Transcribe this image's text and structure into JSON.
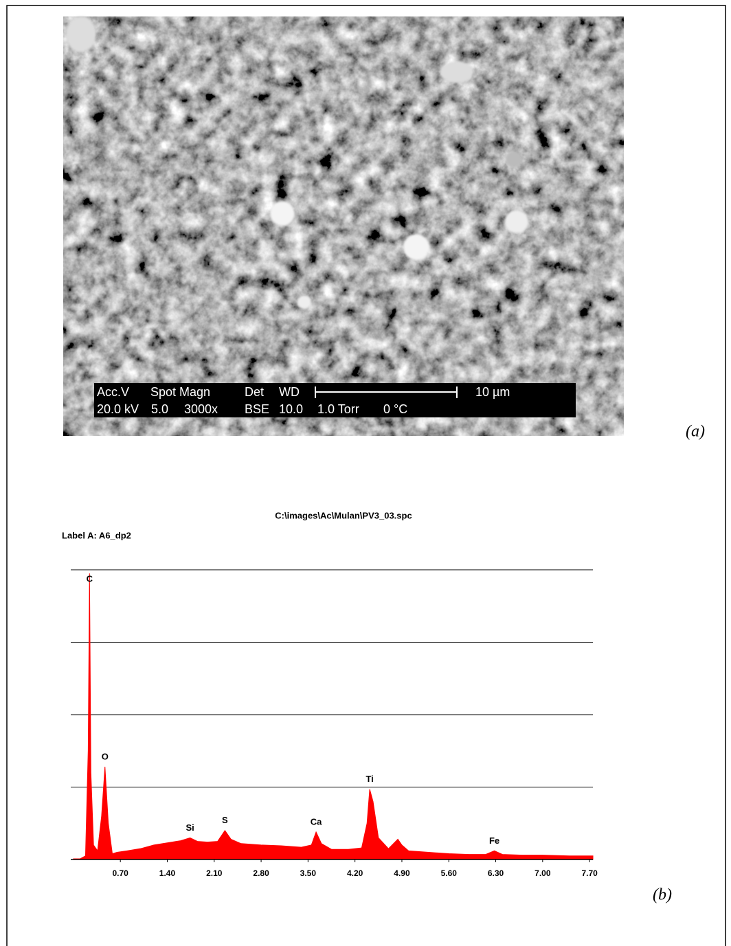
{
  "sem": {
    "row1": [
      "Acc.V",
      "Spot Magn",
      "Det",
      "WD",
      "10 µm"
    ],
    "row2": [
      "20.0 kV",
      "5.0",
      "3000x",
      "BSE",
      "10.0",
      "1.0 Torr",
      "0 °C"
    ]
  },
  "panel_labels": [
    "(a)",
    "(b)"
  ],
  "chart_data": {
    "type": "spectrum",
    "title": "C:\\images\\Ac\\Mulan\\PV3_03.spc",
    "subtitle": "Label A: A6_dp2",
    "x": [
      0.0,
      0.1,
      0.18,
      0.22,
      0.24,
      0.26,
      0.3,
      0.36,
      0.42,
      0.47,
      0.52,
      0.58,
      0.65,
      0.8,
      1.0,
      1.2,
      1.4,
      1.6,
      1.74,
      1.85,
      2.0,
      2.15,
      2.26,
      2.35,
      2.5,
      2.8,
      3.1,
      3.4,
      3.55,
      3.62,
      3.7,
      3.85,
      4.1,
      4.3,
      4.38,
      4.42,
      4.47,
      4.55,
      4.7,
      4.84,
      4.9,
      5.0,
      5.3,
      5.6,
      5.9,
      6.15,
      6.28,
      6.4,
      6.7,
      7.0,
      7.4,
      7.75
    ],
    "values": [
      0.01,
      0.01,
      0.05,
      1.5,
      3.95,
      1.2,
      0.2,
      0.12,
      0.6,
      1.28,
      0.5,
      0.08,
      0.1,
      0.12,
      0.15,
      0.2,
      0.23,
      0.26,
      0.3,
      0.25,
      0.24,
      0.25,
      0.4,
      0.28,
      0.22,
      0.2,
      0.19,
      0.17,
      0.2,
      0.38,
      0.22,
      0.14,
      0.14,
      0.16,
      0.5,
      0.97,
      0.8,
      0.3,
      0.15,
      0.28,
      0.2,
      0.12,
      0.1,
      0.08,
      0.07,
      0.07,
      0.12,
      0.07,
      0.06,
      0.06,
      0.05,
      0.05
    ],
    "color": "#ff0000",
    "xlim": [
      -0.04,
      7.75
    ],
    "xticks": [
      {
        "value": 0.7,
        "label": "0.70"
      },
      {
        "value": 1.4,
        "label": "1.40"
      },
      {
        "value": 2.1,
        "label": "2.10"
      },
      {
        "value": 2.8,
        "label": "2.80"
      },
      {
        "value": 3.5,
        "label": "3.50"
      },
      {
        "value": 4.2,
        "label": "4.20"
      },
      {
        "value": 4.9,
        "label": "4.90"
      },
      {
        "value": 5.6,
        "label": "5.60"
      },
      {
        "value": 6.3,
        "label": "6.30"
      },
      {
        "value": 7.0,
        "label": "7.00"
      },
      {
        "value": 7.7,
        "label": "7.70"
      }
    ],
    "ylim": [
      0,
      4
    ],
    "yticks": [
      1,
      2,
      3,
      4
    ],
    "grid": true,
    "annotations": [
      {
        "label": "C",
        "x": 0.24
      },
      {
        "label": "O",
        "x": 0.47
      },
      {
        "label": "Si",
        "x": 1.74
      },
      {
        "label": "S",
        "x": 2.26
      },
      {
        "label": "Ca",
        "x": 3.62
      },
      {
        "label": "Ti",
        "x": 4.42
      },
      {
        "label": "Fe",
        "x": 6.28
      }
    ]
  }
}
